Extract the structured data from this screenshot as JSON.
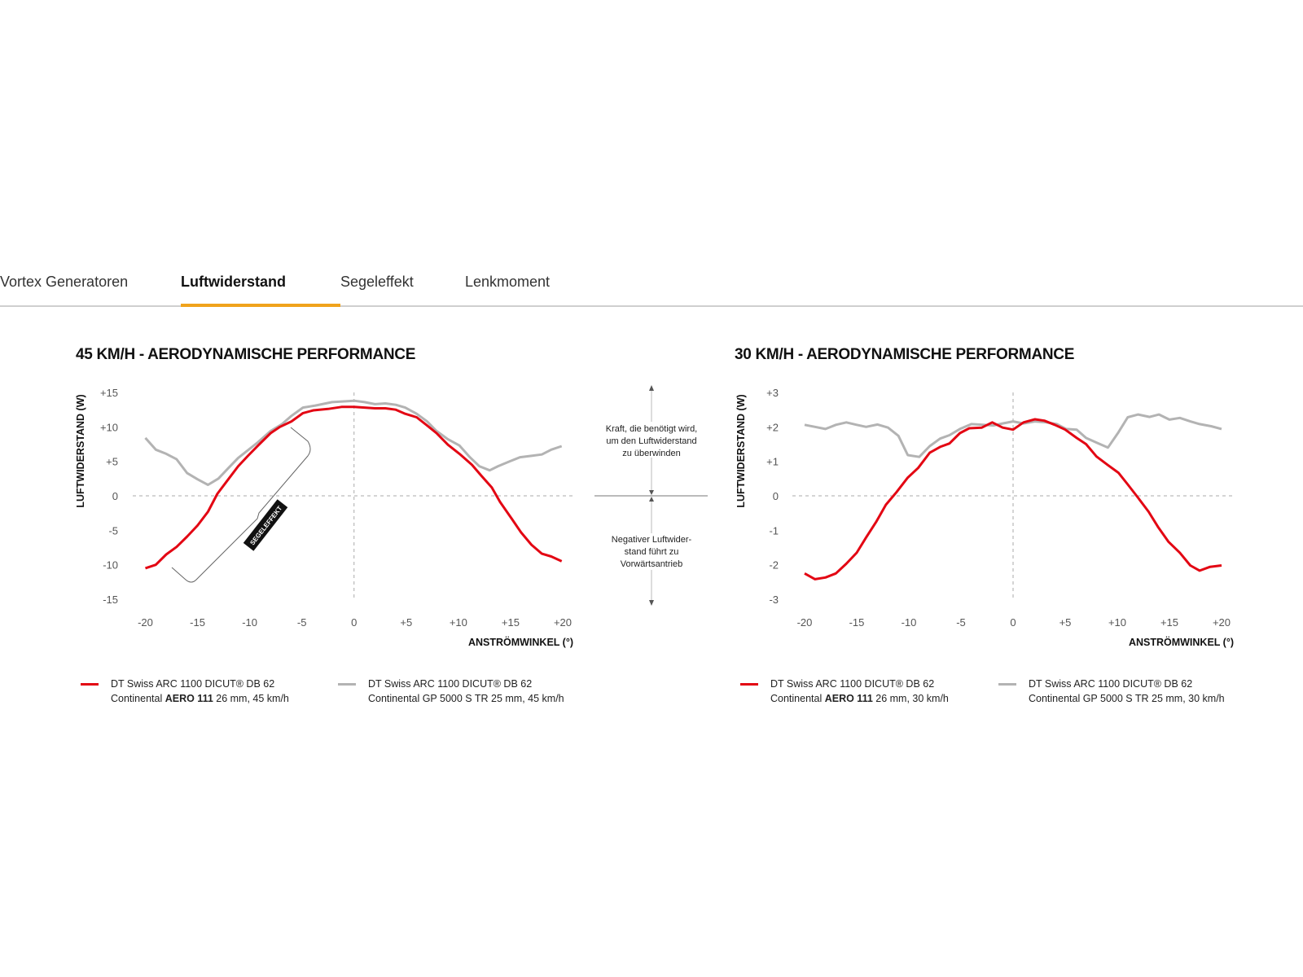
{
  "tabs": [
    {
      "label": "Vortex Generatoren",
      "active": false
    },
    {
      "label": "Luftwiderstand",
      "active": true
    },
    {
      "label": "Segeleffekt",
      "active": false
    },
    {
      "label": "Lenkmoment",
      "active": false
    }
  ],
  "colors": {
    "accent": "#f0a31c",
    "red_series": "#e30613",
    "gray_series": "#b3b3b3"
  },
  "annotation": {
    "positive": [
      "Kraft, die benötigt wird,",
      "um den Luftwiderstand",
      "zu überwinden"
    ],
    "negative": [
      "Negativer Luftwider-",
      "stand führt zu",
      "Vorwärtsantrieb"
    ],
    "segeleffekt_label": "SEGELEFFEKT"
  },
  "chart_data": [
    {
      "type": "line",
      "title": "45 KM/H - AERODYNAMISCHE PERFORMANCE",
      "xlabel": "ANSTRÖMWINKEL (°)",
      "ylabel": "LUFTWIDERSTAND (W)",
      "xlim": [
        -20,
        20
      ],
      "ylim": [
        -15,
        15
      ],
      "xticks": [
        "-20",
        "-15",
        "-10",
        "-5",
        "0",
        "+5",
        "+10",
        "+15",
        "+20"
      ],
      "yticks": [
        "+15",
        "+10",
        "+5",
        "0",
        "-5",
        "-10",
        "-15"
      ],
      "grid": "dashed zero lines only",
      "legend_position": "bottom",
      "series": [
        {
          "legend": {
            "line1": "DT Swiss ARC 1100 DICUT® DB 62",
            "pre": "Continental ",
            "bold": "AERO 111",
            "post": " 26 mm, 45 km/h"
          },
          "color": "#e30613",
          "x": [
            -20,
            -19,
            -18,
            -17,
            -16,
            -15,
            -14,
            -13.1,
            -12,
            -11.1,
            -10.1,
            -9.2,
            -8,
            -7.1,
            -6,
            -4.9,
            -3.9,
            -2.5,
            -1.2,
            0,
            1,
            2,
            3,
            4,
            4.9,
            6,
            7,
            7.9,
            9,
            10.1,
            11.3,
            12.2,
            13.2,
            14,
            15.1,
            16,
            17,
            18,
            18.9,
            19.9
          ],
          "y": [
            -10.5,
            -10,
            -8.5,
            -7.4,
            -5.9,
            -4.3,
            -2.3,
            0.3,
            2.5,
            4.3,
            5.9,
            7.3,
            9.1,
            10,
            10.8,
            12,
            12.4,
            12.6,
            12.9,
            12.9,
            12.8,
            12.7,
            12.7,
            12.5,
            11.9,
            11.4,
            10.2,
            9.1,
            7.4,
            6.1,
            4.5,
            2.9,
            1.2,
            -0.9,
            -3.3,
            -5.3,
            -7.1,
            -8.4,
            -8.8,
            -9.5
          ]
        },
        {
          "legend": {
            "line1": "DT Swiss ARC 1100 DICUT® DB 62",
            "pre": "Continental GP 5000 S TR 25 mm, 45 km/h",
            "bold": "",
            "post": ""
          },
          "color": "#b3b3b3",
          "x": [
            -20,
            -19,
            -18,
            -17,
            -16,
            -15,
            -14,
            -13,
            -12,
            -11.1,
            -10.1,
            -9.2,
            -8,
            -6.9,
            -6,
            -4.9,
            -3.7,
            -2.1,
            0,
            1,
            2,
            3,
            4,
            4.9,
            6,
            7,
            7.9,
            9,
            10.1,
            11.1,
            12,
            13,
            13.8,
            14.9,
            15.9,
            17,
            18,
            18.9,
            19.9
          ],
          "y": [
            8.4,
            6.7,
            6.1,
            5.3,
            3.3,
            2.4,
            1.6,
            2.5,
            4.1,
            5.5,
            6.7,
            7.8,
            9.4,
            10.4,
            11.6,
            12.8,
            13.1,
            13.6,
            13.8,
            13.6,
            13.3,
            13.4,
            13.2,
            12.8,
            11.9,
            10.8,
            9.4,
            8.2,
            7.3,
            5.6,
            4.3,
            3.7,
            4.3,
            5,
            5.6,
            5.8,
            6,
            6.7,
            7.2
          ]
        }
      ]
    },
    {
      "type": "line",
      "title": "30 KM/H - AERODYNAMISCHE PERFORMANCE",
      "xlabel": "ANSTRÖMWINKEL (°)",
      "ylabel": "LUFTWIDERSTAND (W)",
      "xlim": [
        -20,
        20
      ],
      "ylim": [
        -3,
        3
      ],
      "xticks": [
        "-20",
        "-15",
        "-10",
        "-5",
        "0",
        "+5",
        "+10",
        "+15",
        "+20"
      ],
      "yticks": [
        "+3",
        "+2",
        "+1",
        "0",
        "-1",
        "-2",
        "-3"
      ],
      "grid": "dashed zero lines only",
      "legend_position": "bottom",
      "series": [
        {
          "legend": {
            "line1": "DT Swiss ARC 1100 DICUT® DB 62",
            "pre": "Continental ",
            "bold": "AERO 111",
            "post": " 26 mm, 30 km/h"
          },
          "color": "#e30613",
          "x": [
            -20,
            -19,
            -18,
            -17,
            -16,
            -15,
            -14.1,
            -13.1,
            -12.2,
            -11.2,
            -10.1,
            -9.1,
            -8,
            -7,
            -6.1,
            -5.1,
            -4.2,
            -3,
            -2,
            -1,
            0,
            1,
            2.1,
            3,
            4,
            5,
            6.1,
            7,
            8,
            9.1,
            10.1,
            11,
            12,
            13,
            13.9,
            14.9,
            16,
            17,
            17.9,
            18.9,
            20
          ],
          "y": [
            -2.25,
            -2.42,
            -2.37,
            -2.25,
            -1.97,
            -1.65,
            -1.21,
            -0.74,
            -0.26,
            0.1,
            0.53,
            0.81,
            1.25,
            1.42,
            1.52,
            1.82,
            1.96,
            1.98,
            2.13,
            1.98,
            1.92,
            2.13,
            2.22,
            2.18,
            2.06,
            1.92,
            1.68,
            1.5,
            1.14,
            0.89,
            0.67,
            0.33,
            -0.06,
            -0.46,
            -0.9,
            -1.33,
            -1.65,
            -2.02,
            -2.17,
            -2.06,
            -2.02
          ]
        },
        {
          "legend": {
            "line1": "DT Swiss ARC 1100 DICUT® DB 62",
            "pre": "Continental GP 5000 S TR 25 mm, 30 km/h",
            "bold": "",
            "post": ""
          },
          "color": "#b3b3b3",
          "x": [
            -20,
            -19,
            -18,
            -17,
            -16,
            -15,
            -14.1,
            -13,
            -12,
            -11,
            -10.1,
            -9,
            -8,
            -7,
            -6.1,
            -5.1,
            -4,
            -2.9,
            -1.9,
            -1,
            0,
            1,
            2.1,
            3.2,
            4.2,
            5.1,
            6.1,
            7,
            8.2,
            9.1,
            10.1,
            11,
            12,
            13.1,
            14,
            15,
            16,
            17,
            17.9,
            19,
            20
          ],
          "y": [
            2.06,
            2,
            1.94,
            2.06,
            2.13,
            2.06,
            2,
            2.07,
            1.98,
            1.74,
            1.18,
            1.13,
            1.44,
            1.66,
            1.76,
            1.94,
            2.08,
            2.06,
            2.04,
            2.1,
            2.16,
            2.1,
            2.16,
            2.13,
            2.08,
            1.94,
            1.92,
            1.68,
            1.52,
            1.4,
            1.84,
            2.28,
            2.36,
            2.29,
            2.36,
            2.21,
            2.26,
            2.16,
            2.08,
            2.02,
            1.94
          ]
        }
      ]
    }
  ]
}
